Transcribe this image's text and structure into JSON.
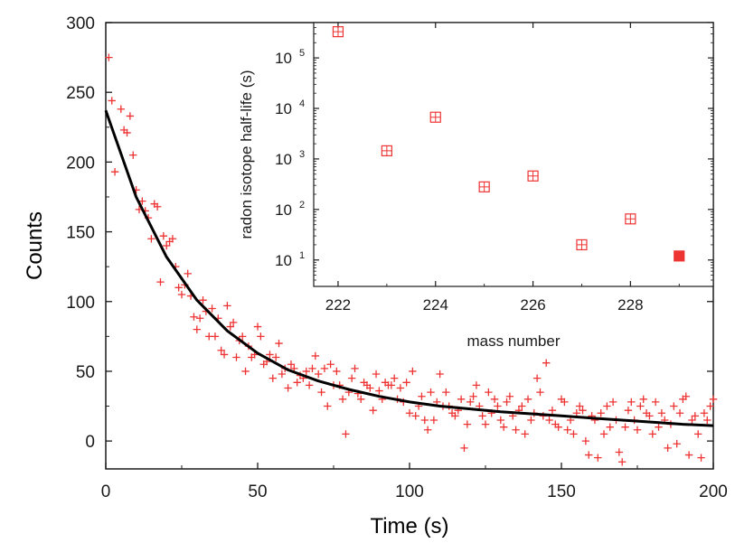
{
  "colors": {
    "points": "#ee3333",
    "fit": "#000000",
    "axes": "#1a1a1a",
    "background": "#ffffff"
  },
  "chart_data": [
    {
      "type": "scatter",
      "title": "",
      "xlabel": "Time (s)",
      "ylabel": "Counts",
      "xlim": [
        0,
        200
      ],
      "ylim": [
        -20,
        300
      ],
      "x_ticks": [
        0,
        50,
        100,
        150,
        200
      ],
      "y_ticks": [
        0,
        50,
        100,
        150,
        200,
        250,
        300
      ],
      "x_tick_labels": [
        "0",
        "50",
        "100",
        "150",
        "200"
      ],
      "y_tick_labels": [
        "0",
        "50",
        "100",
        "150",
        "200",
        "250",
        "300"
      ],
      "grid": false,
      "marker": "plus",
      "series": [
        {
          "kind": "scatter",
          "marker": "plus",
          "color": "#ee3333",
          "x": [
            1,
            2,
            3,
            5,
            6,
            7,
            8,
            9,
            10,
            11,
            12,
            13,
            14,
            15,
            16,
            17,
            18,
            19,
            20,
            21,
            22,
            23,
            24,
            25,
            26,
            27,
            28,
            29,
            30,
            31,
            32,
            33,
            34,
            35,
            36,
            37,
            38,
            39,
            40,
            41,
            42,
            43,
            44,
            45,
            46,
            47,
            48,
            49,
            50,
            51,
            52,
            53,
            54,
            55,
            56,
            57,
            58,
            59,
            60,
            61,
            62,
            63,
            64,
            65,
            66,
            67,
            68,
            69,
            70,
            71,
            72,
            73,
            74,
            75,
            76,
            77,
            78,
            79,
            80,
            81,
            82,
            83,
            84,
            85,
            86,
            87,
            88,
            89,
            90,
            91,
            92,
            93,
            94,
            95,
            96,
            97,
            98,
            99,
            100,
            101,
            102,
            103,
            104,
            105,
            106,
            107,
            108,
            109,
            110,
            111,
            112,
            113,
            114,
            115,
            116,
            117,
            118,
            119,
            120,
            121,
            122,
            123,
            124,
            125,
            126,
            127,
            128,
            129,
            130,
            131,
            132,
            133,
            134,
            135,
            136,
            137,
            138,
            139,
            140,
            141,
            142,
            143,
            144,
            145,
            146,
            147,
            148,
            149,
            150,
            151,
            152,
            153,
            154,
            155,
            156,
            157,
            158,
            159,
            160,
            161,
            162,
            163,
            164,
            165,
            166,
            167,
            168,
            169,
            170,
            171,
            172,
            173,
            174,
            175,
            176,
            177,
            178,
            179,
            180,
            181,
            182,
            183,
            184,
            185,
            186,
            187,
            188,
            189,
            190,
            191,
            192,
            193,
            194,
            195,
            196,
            197,
            198,
            199,
            200
          ],
          "y": [
            275,
            244,
            193,
            238,
            223,
            221,
            233,
            205,
            180,
            166,
            172,
            165,
            160,
            145,
            170,
            168,
            114,
            147,
            140,
            143,
            145,
            125,
            110,
            105,
            112,
            120,
            104,
            89,
            80,
            88,
            101,
            93,
            75,
            95,
            75,
            88,
            65,
            62,
            97,
            82,
            85,
            60,
            72,
            75,
            50,
            68,
            60,
            62,
            82,
            75,
            55,
            57,
            62,
            45,
            60,
            70,
            48,
            52,
            38,
            55,
            52,
            42,
            47,
            45,
            50,
            40,
            52,
            61,
            48,
            35,
            52,
            25,
            55,
            40,
            50,
            40,
            30,
            5,
            35,
            45,
            52,
            34,
            30,
            42,
            40,
            38,
            22,
            48,
            36,
            30,
            42,
            40,
            40,
            45,
            30,
            38,
            28,
            42,
            20,
            50,
            18,
            25,
            32,
            15,
            8,
            35,
            15,
            28,
            48,
            25,
            35,
            25,
            20,
            18,
            22,
            30,
            -5,
            12,
            28,
            32,
            40,
            25,
            18,
            12,
            35,
            20,
            30,
            25,
            15,
            10,
            28,
            32,
            18,
            8,
            22,
            25,
            5,
            30,
            15,
            20,
            45,
            35,
            18,
            56,
            15,
            22,
            12,
            10,
            30,
            28,
            8,
            15,
            5,
            20,
            25,
            22,
            0,
            -10,
            18,
            15,
            -12,
            20,
            5,
            25,
            10,
            28,
            15,
            -8,
            -15,
            10,
            22,
            28,
            15,
            8,
            25,
            30,
            20,
            18,
            5,
            28,
            10,
            20,
            15,
            -5,
            12,
            25,
            -2,
            20,
            30,
            32,
            -10,
            15,
            18,
            5,
            -12,
            20,
            15,
            25,
            30
          ]
        },
        {
          "kind": "line",
          "name": "",
          "color": "#000000",
          "x": [
            0,
            10,
            20,
            30,
            40,
            50,
            60,
            70,
            80,
            90,
            100,
            110,
            120,
            130,
            140,
            150,
            160,
            170,
            180,
            190,
            200
          ],
          "y": [
            237,
            175,
            132,
            101,
            79,
            63,
            51,
            43,
            37,
            32,
            28,
            25,
            23,
            21,
            19.5,
            18,
            16.5,
            15,
            13.5,
            12,
            11
          ]
        }
      ]
    },
    {
      "type": "scatter",
      "title": "",
      "xlabel": "mass number",
      "ylabel": "radon isotope half-life (s)",
      "xlim": [
        221.5,
        229.7
      ],
      "ylim": [
        3,
        500000
      ],
      "yscale": "log",
      "x_ticks": [
        222,
        224,
        226,
        228
      ],
      "x_tick_labels": [
        "222",
        "224",
        "226",
        "228"
      ],
      "y_ticks": [
        10,
        100,
        1000,
        10000,
        100000
      ],
      "y_tick_labels": [
        {
          "base": "10",
          "exp": "1"
        },
        {
          "base": "10",
          "exp": "2"
        },
        {
          "base": "10",
          "exp": "3"
        },
        {
          "base": "10",
          "exp": "4"
        },
        {
          "base": "10",
          "exp": "5"
        }
      ],
      "grid": false,
      "marker": "boxed-plus",
      "series": [
        {
          "kind": "scatter",
          "marker": "boxed-plus",
          "color": "#ee3333",
          "x": [
            222,
            223,
            224,
            225,
            226,
            227,
            228,
            229
          ],
          "y": [
            330000,
            1450,
            6700,
            280,
            460,
            20,
            65,
            12
          ],
          "filled": [
            false,
            false,
            false,
            false,
            false,
            false,
            false,
            true
          ]
        }
      ]
    }
  ]
}
